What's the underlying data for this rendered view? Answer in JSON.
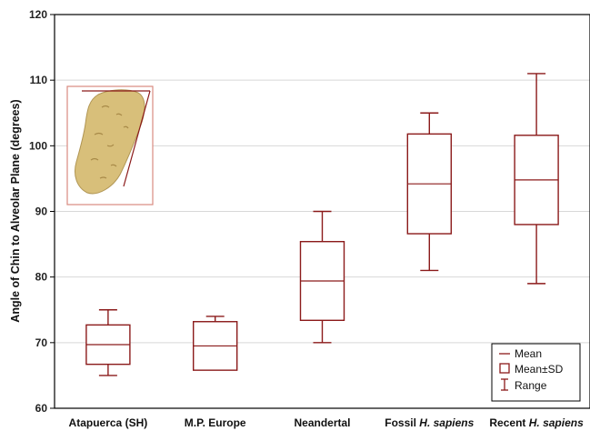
{
  "chart_data": {
    "type": "boxplot",
    "ylabel": "Angle of Chin to Alveolar Plane (degrees)",
    "ylim": [
      60,
      120
    ],
    "yticks": [
      60,
      70,
      80,
      90,
      100,
      110,
      120
    ],
    "grid": "horizontal",
    "legend_position": "bottom-right",
    "categories": [
      {
        "name": "Atapuerca (SH)",
        "italic_part": ""
      },
      {
        "name": "M.P. Europe",
        "italic_part": ""
      },
      {
        "name": "Neandertal",
        "italic_part": ""
      },
      {
        "name": "Fossil ",
        "italic_part": "H. sapiens"
      },
      {
        "name": "Recent ",
        "italic_part": "H. sapiens"
      }
    ],
    "series": [
      {
        "mean": 69.7,
        "sd_low": 66.7,
        "sd_high": 72.7,
        "min": 65,
        "max": 75
      },
      {
        "mean": 69.5,
        "sd_low": 65.8,
        "sd_high": 73.2,
        "min": 73.2,
        "max": 74
      },
      {
        "mean": 79.4,
        "sd_low": 73.4,
        "sd_high": 85.4,
        "min": 70,
        "max": 90
      },
      {
        "mean": 94.2,
        "sd_low": 86.6,
        "sd_high": 101.8,
        "min": 81,
        "max": 105
      },
      {
        "mean": 94.8,
        "sd_low": 88.0,
        "sd_high": 101.6,
        "min": 79,
        "max": 111
      }
    ],
    "legend": {
      "mean": "Mean",
      "sd": "Mean±SD",
      "range": "Range"
    },
    "colors": {
      "box": "#8b1a1a",
      "grid": "#d8d8d8",
      "inset_frame": "#d98a80",
      "bone": "#d8bf7a"
    }
  }
}
